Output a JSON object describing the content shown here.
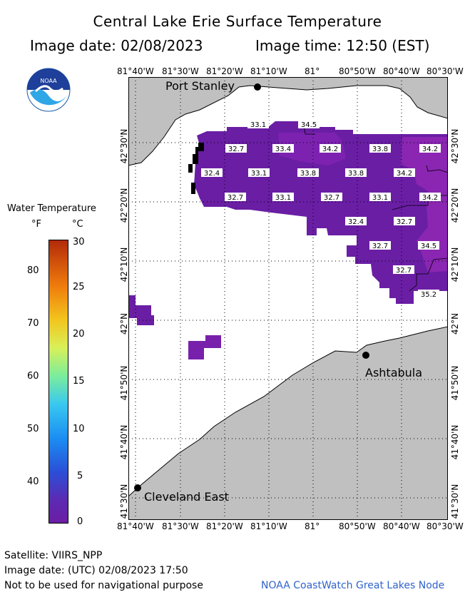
{
  "title": "Central Lake Erie Surface Temperature",
  "image_date_label": "Image date: 02/08/2023",
  "image_time_label": "Image time: 12:50 (EST)",
  "logo_text": "NOAA",
  "longitude_ticks": [
    "81°40'W",
    "81°30'W",
    "81°20'W",
    "81°10'W",
    "81°",
    "80°50'W",
    "80°40'W",
    "80°30'W"
  ],
  "latitude_ticks": [
    "42°30'N",
    "42°20'N",
    "42°10'N",
    "42°N",
    "41°50'N",
    "41°40'N",
    "41°30'N"
  ],
  "cities": [
    {
      "name": "Port Stanley"
    },
    {
      "name": "Ashtabula"
    },
    {
      "name": "Cleveland East"
    }
  ],
  "temperature_labels": [
    "33.1",
    "34.5",
    "32.7",
    "33.4",
    "34.2",
    "33.8",
    "34.2",
    "32.4",
    "33.1",
    "33.8",
    "33.8",
    "34.2",
    "32.7",
    "33.1",
    "32.7",
    "33.1",
    "34.2",
    "32.4",
    "32.7",
    "32.7",
    "34.5",
    "32.7",
    "35.2"
  ],
  "legend": {
    "title": "Water Temperature",
    "unit_f": "°F",
    "unit_c": "°C",
    "f_ticks": [
      "80",
      "70",
      "60",
      "50",
      "40"
    ],
    "c_ticks": [
      "30",
      "25",
      "20",
      "15",
      "10",
      "5",
      "0"
    ]
  },
  "colors": {
    "land": "#c0c0c0",
    "water_cold": "#6a1ea4",
    "water_warm": "#8520aa",
    "footer_blue": "#3063c9"
  },
  "footer": {
    "satellite": "Satellite: VIIRS_NPP",
    "utc_date": "Image date: (UTC) 02/08/2023  17:50",
    "disclaimer": "Not to be used for navigational purpose",
    "credit": "NOAA CoastWatch Great Lakes Node"
  }
}
